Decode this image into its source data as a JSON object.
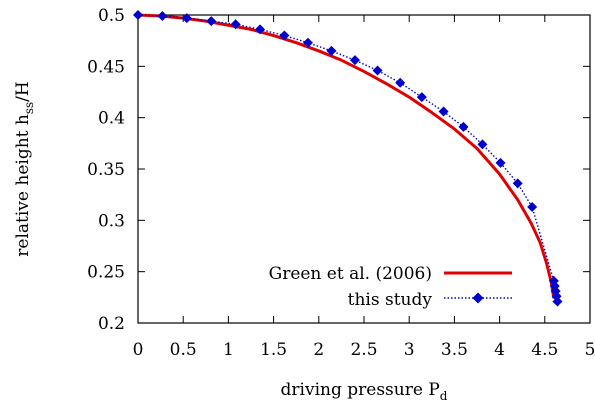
{
  "chart_data": {
    "type": "line",
    "title": "",
    "xlabel": {
      "main": "driving pressure P",
      "sub": "d"
    },
    "ylabel": {
      "main": "relative height h",
      "sub": "ss",
      "suffix": "/H"
    },
    "xlim": [
      0,
      5
    ],
    "ylim": [
      0.2,
      0.5
    ],
    "x_ticks": [
      "0",
      "0.5",
      "1",
      "1.5",
      "2",
      "2.5",
      "3",
      "3.5",
      "4",
      "4.5",
      "5"
    ],
    "y_ticks": [
      "0.2",
      "0.25",
      "0.3",
      "0.35",
      "0.4",
      "0.45",
      "0.5"
    ],
    "grid": false,
    "legend_position": "bottom-right",
    "series": [
      {
        "name": "Green et al. (2006)",
        "color": "#e00000",
        "style": "solid line",
        "x": [
          0.0,
          0.25,
          0.5,
          0.75,
          1.0,
          1.25,
          1.5,
          1.75,
          2.0,
          2.25,
          2.5,
          2.75,
          3.0,
          3.25,
          3.5,
          3.75,
          4.0,
          4.2,
          4.35,
          4.45,
          4.52,
          4.57,
          4.6
        ],
        "y": [
          0.5,
          0.499,
          0.497,
          0.494,
          0.49,
          0.486,
          0.48,
          0.473,
          0.465,
          0.456,
          0.445,
          0.433,
          0.42,
          0.405,
          0.389,
          0.37,
          0.345,
          0.32,
          0.297,
          0.278,
          0.258,
          0.24,
          0.224
        ]
      },
      {
        "name": "this study",
        "color": "#0000cc",
        "style": "dotted line with diamond markers",
        "x": [
          0.0,
          0.27,
          0.54,
          0.81,
          1.08,
          1.35,
          1.62,
          1.88,
          2.14,
          2.4,
          2.65,
          2.9,
          3.14,
          3.38,
          3.6,
          3.81,
          4.01,
          4.2,
          4.36,
          4.6,
          4.61,
          4.62,
          4.63,
          4.64
        ],
        "y": [
          0.5,
          0.499,
          0.497,
          0.494,
          0.491,
          0.486,
          0.48,
          0.473,
          0.465,
          0.456,
          0.446,
          0.434,
          0.42,
          0.406,
          0.391,
          0.374,
          0.356,
          0.336,
          0.313,
          0.241,
          0.236,
          0.231,
          0.226,
          0.221
        ]
      }
    ]
  }
}
